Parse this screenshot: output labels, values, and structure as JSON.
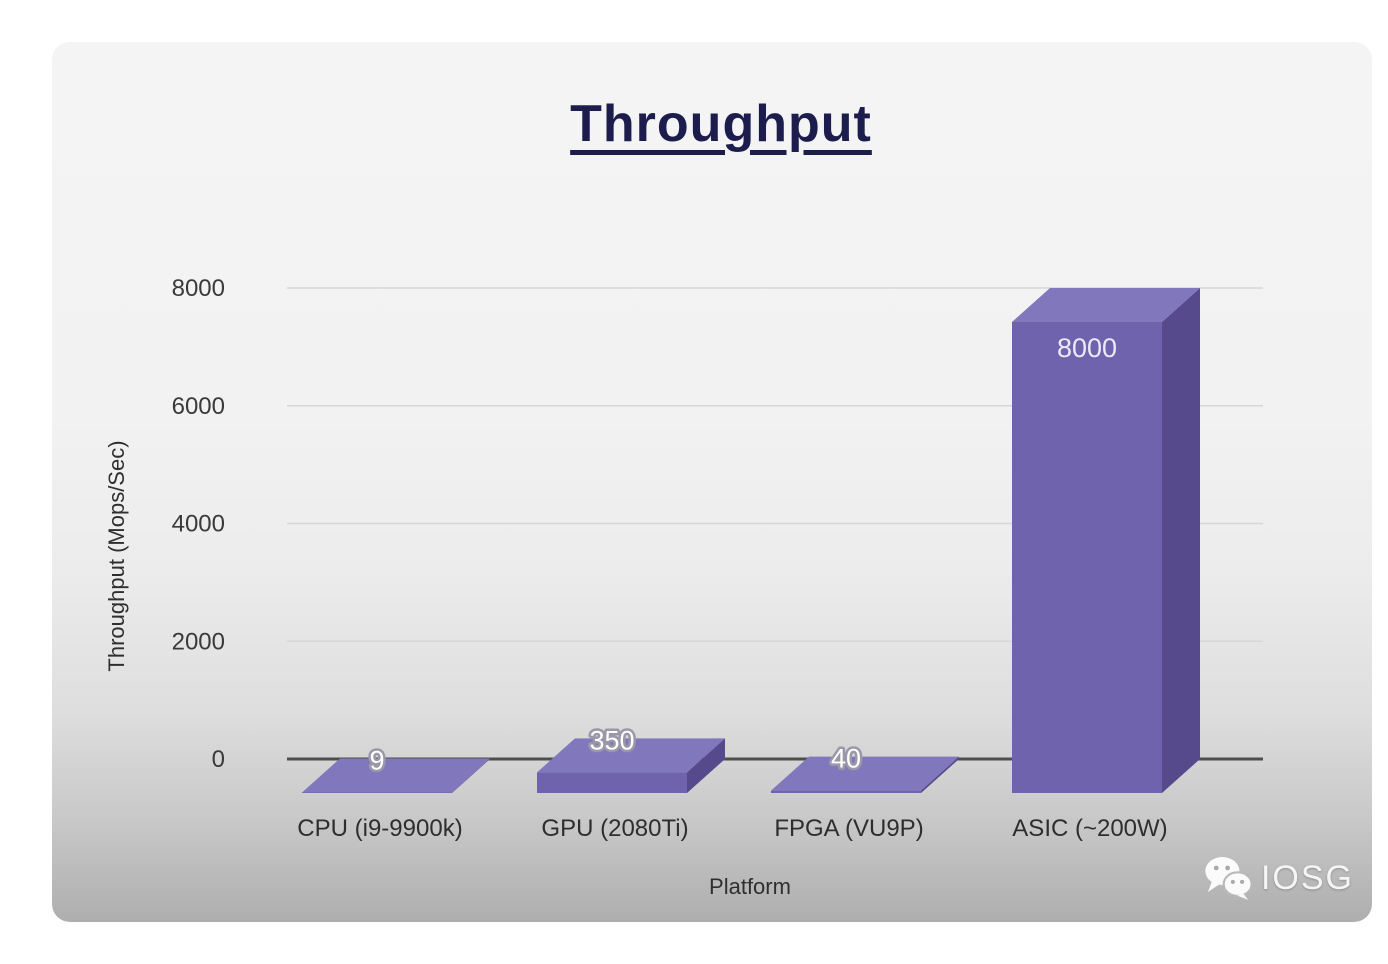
{
  "chart_data": {
    "type": "bar",
    "style": "3d-bar",
    "title": "Throughput",
    "categories": [
      "CPU (i9-9900k)",
      "GPU (2080Ti)",
      "FPGA (VU9P)",
      "ASIC (~200W)"
    ],
    "values": [
      9,
      350,
      40,
      8000
    ],
    "value_labels": [
      "9",
      "350",
      "40",
      "8000"
    ],
    "xlabel": "Platform",
    "ylabel": "Throughput (Mops/Sec)",
    "yticks": [
      0,
      2000,
      4000,
      6000,
      8000
    ],
    "ytick_labels": [
      "0",
      "2000",
      "4000",
      "6000",
      "8000"
    ],
    "ylim": [
      0,
      8000
    ],
    "grid": true,
    "legend": false,
    "colors": {
      "bar_top": "#8177bc",
      "bar_front": "#6f63ae",
      "bar_side": "#564a8c",
      "value_label_fill": "#ffffff",
      "value_label_outline": "#9a97a8",
      "inside_label_fill": "#ece9f8",
      "title": "#1d1d4d",
      "axis_line": "#4e4e4e",
      "gridline": "#d7d7d7",
      "tick_text": "#3a3a3a"
    }
  },
  "watermark": {
    "text": "IOSG",
    "icon": "wechat-icon"
  }
}
